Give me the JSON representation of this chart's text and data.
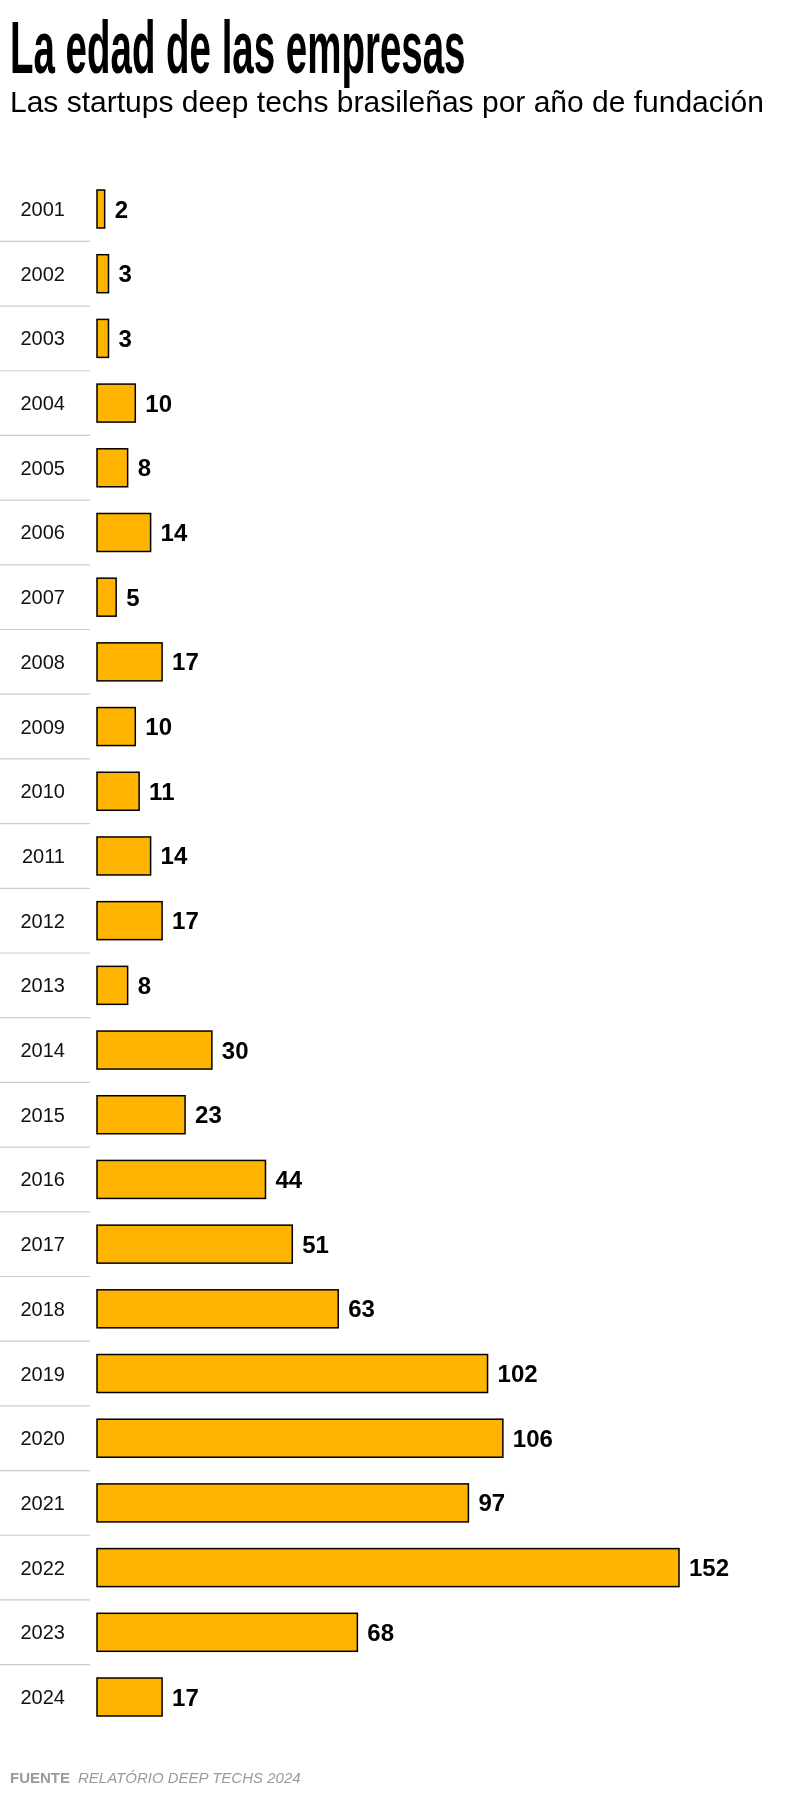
{
  "chart_data": {
    "type": "bar",
    "orientation": "horizontal",
    "title": "La edad de las empresas",
    "subtitle": "Las startups deep techs brasileñas por año de fundación",
    "categories": [
      "2001",
      "2002",
      "2003",
      "2004",
      "2005",
      "2006",
      "2007",
      "2008",
      "2009",
      "2010",
      "2011",
      "2012",
      "2013",
      "2014",
      "2015",
      "2016",
      "2017",
      "2018",
      "2019",
      "2020",
      "2021",
      "2022",
      "2023",
      "2024"
    ],
    "values": [
      2,
      3,
      3,
      10,
      8,
      14,
      5,
      17,
      10,
      11,
      14,
      17,
      8,
      30,
      23,
      44,
      51,
      63,
      102,
      106,
      97,
      152,
      68,
      17
    ],
    "color": "#ffb400",
    "data_labels": true,
    "annotations": [
      "FUENTE RELATÓRIO DEEP TECHS 2024"
    ]
  }
}
